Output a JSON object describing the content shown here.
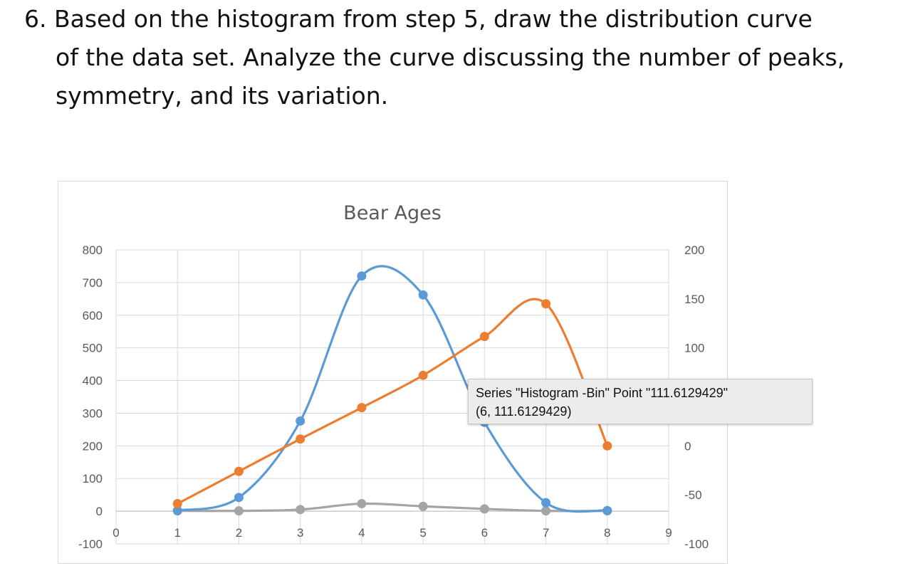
{
  "question": {
    "number": "6.",
    "lines": [
      "Based on the histogram from step 5, draw the distribution curve",
      "of the data set. Analyze the curve discussing the number of peaks,",
      "symmetry, and its variation."
    ]
  },
  "chart_data": {
    "type": "line",
    "title": "Bear Ages",
    "xlabel": "",
    "ylabel": "",
    "x_ticks": [
      "0",
      "1",
      "2",
      "3",
      "4",
      "5",
      "6",
      "7",
      "8",
      "9"
    ],
    "xlim": [
      0,
      9
    ],
    "ylim": [
      -100,
      800
    ],
    "y_ticks": [
      "800",
      "700",
      "600",
      "500",
      "400",
      "300",
      "200",
      "100",
      "0",
      "-100"
    ],
    "y2lim": [
      -100,
      200
    ],
    "y2_ticks": [
      "200",
      "150",
      "100",
      "0",
      "-50",
      "-100"
    ],
    "grid": true,
    "legend": "none",
    "series": [
      {
        "color": "#5b9bd5",
        "axis": "left",
        "smooth": true,
        "x": [
          1,
          2,
          3,
          4,
          5,
          6,
          7,
          8
        ],
        "y": [
          2,
          42,
          276,
          720,
          662,
          272,
          26,
          2
        ]
      },
      {
        "color": "#ed7d31",
        "axis": "right",
        "smooth": true,
        "x": [
          1,
          2,
          3,
          4,
          5,
          6,
          7,
          8
        ],
        "y": [
          -59,
          -26,
          7,
          39,
          72,
          111.6129429,
          145,
          0
        ]
      },
      {
        "color": "#a5a5a5",
        "axis": "left",
        "smooth": true,
        "x": [
          1,
          2,
          3,
          4,
          5,
          6,
          7,
          8
        ],
        "y": [
          1,
          1,
          5,
          23,
          15,
          7,
          1,
          1
        ]
      }
    ]
  },
  "tooltip": {
    "line1": "Series \"Histogram -Bin\" Point \"111.6129429\"",
    "line2": "(6, 111.6129429)"
  }
}
